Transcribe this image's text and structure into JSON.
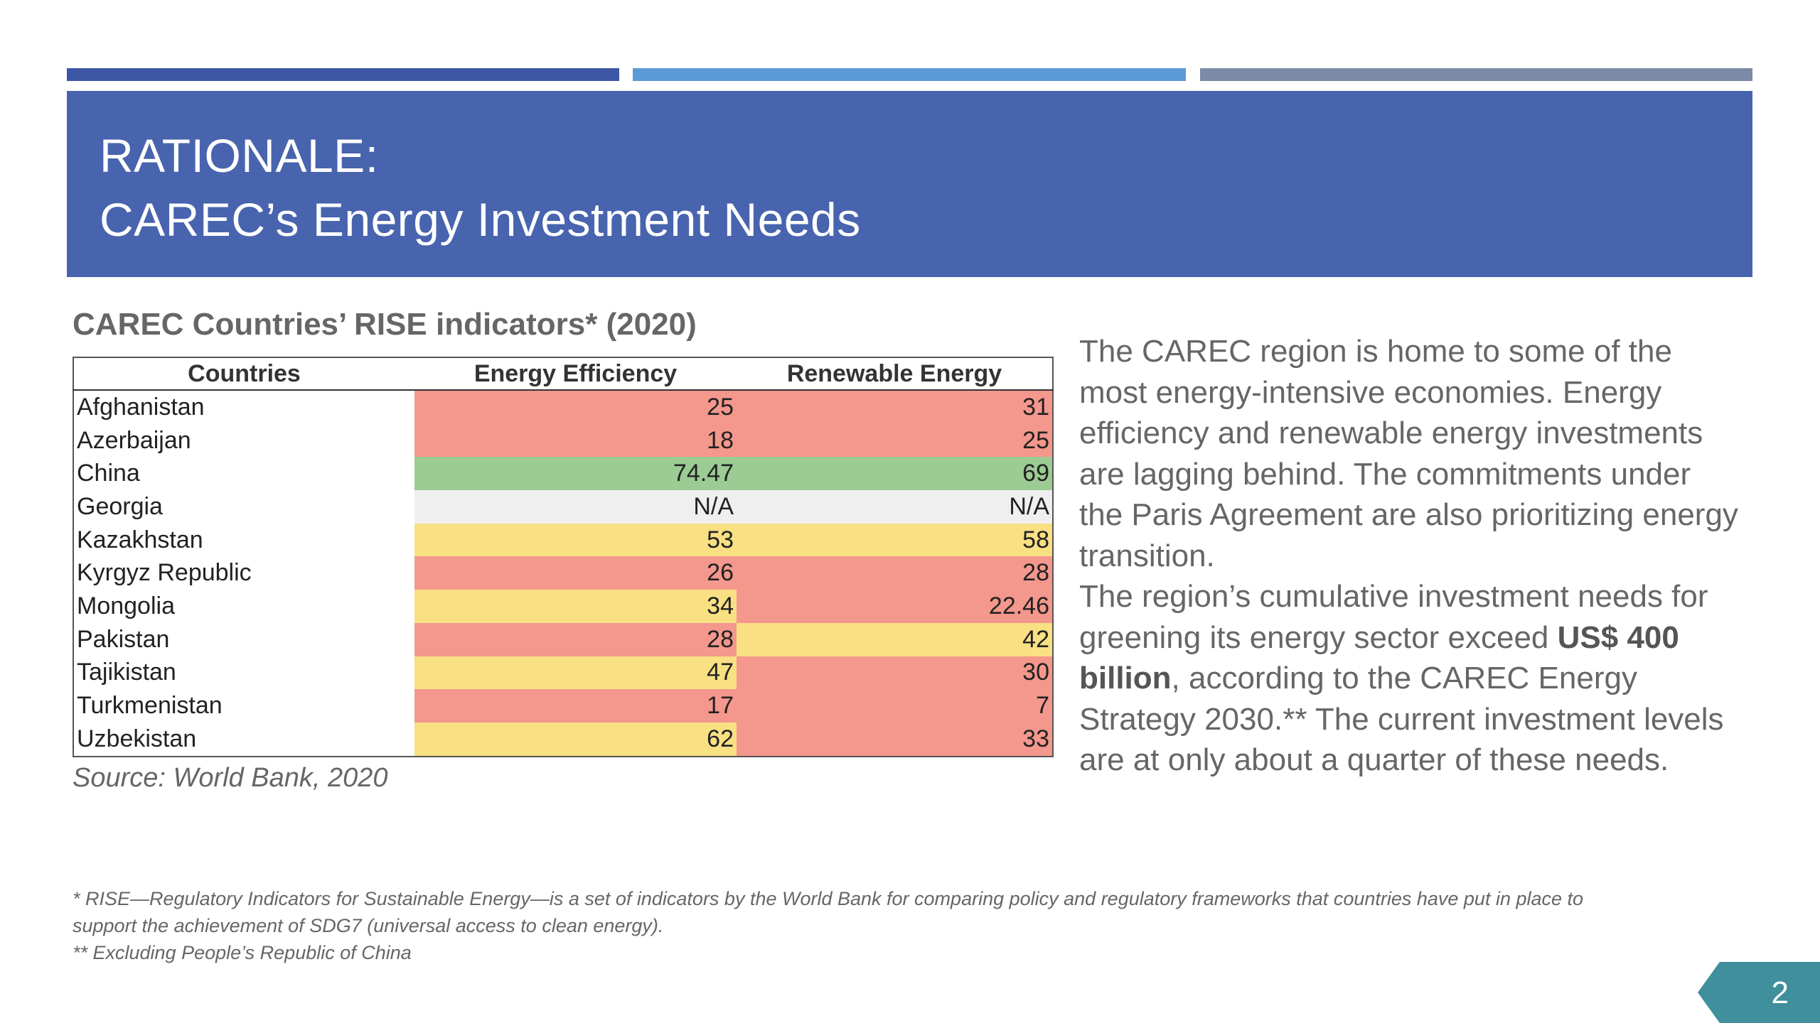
{
  "theme": {
    "bar_colors": [
      "#3d56a5",
      "#5a9ad8",
      "#7b8aa6"
    ],
    "header_bg": "#4864ae",
    "red": "#f4978c",
    "green": "#9ccb93",
    "yellow": "#f8e083",
    "gray": "#efefef",
    "page_badge": "#3f8f9c"
  },
  "header": {
    "title_line1": "RATIONALE:",
    "title_line2": "CAREC’s Energy Investment Needs"
  },
  "table": {
    "title": "CAREC Countries’ RISE indicators* (2020)",
    "headers": [
      "Countries",
      "Energy Efficiency",
      "Renewable Energy"
    ],
    "rows": [
      {
        "country": "Afghanistan",
        "ee": "25",
        "re": "31",
        "ee_color": "red",
        "re_color": "red"
      },
      {
        "country": "Azerbaijan",
        "ee": "18",
        "re": "25",
        "ee_color": "red",
        "re_color": "red"
      },
      {
        "country": "China",
        "ee": "74.47",
        "re": "69",
        "ee_color": "green",
        "re_color": "green"
      },
      {
        "country": "Georgia",
        "ee": "N/A",
        "re": "N/A",
        "ee_color": "gray",
        "re_color": "gray"
      },
      {
        "country": "Kazakhstan",
        "ee": "53",
        "re": "58",
        "ee_color": "yellow",
        "re_color": "yellow"
      },
      {
        "country": "Kyrgyz Republic",
        "ee": "26",
        "re": "28",
        "ee_color": "red",
        "re_color": "red"
      },
      {
        "country": "Mongolia",
        "ee": "34",
        "re": "22.46",
        "ee_color": "yellow",
        "re_color": "red"
      },
      {
        "country": "Pakistan",
        "ee": "28",
        "re": "42",
        "ee_color": "red",
        "re_color": "yellow"
      },
      {
        "country": "Tajikistan",
        "ee": "47",
        "re": "30",
        "ee_color": "yellow",
        "re_color": "red"
      },
      {
        "country": "Turkmenistan",
        "ee": "17",
        "re": "7",
        "ee_color": "red",
        "re_color": "red"
      },
      {
        "country": "Uzbekistan",
        "ee": "62",
        "re": "33",
        "ee_color": "yellow",
        "re_color": "red"
      }
    ],
    "source": "Source:  World Bank, 2020"
  },
  "body": {
    "para1": "The CAREC region is home to some of the most energy-intensive economies. Energy efficiency and renewable energy investments are lagging behind. The commitments under the Paris Agreement are also prioritizing energy transition.",
    "para2_pre": "The region’s cumulative investment needs for greening its energy sector exceed ",
    "para2_bold": "US$ 400 billion",
    "para2_post": ", according to the CAREC Energy Strategy 2030.**  The current investment levels are at only about a quarter of these needs."
  },
  "footnotes": {
    "line1": "* RISE—Regulatory Indicators for Sustainable Energy—is a set of indicators by the World Bank for comparing policy and regulatory frameworks that countries have put in place to",
    "line2": "support the achievement of SDG7 (universal access to clean energy).",
    "line3": "** Excluding People’s Republic of China"
  },
  "page_number": "2"
}
